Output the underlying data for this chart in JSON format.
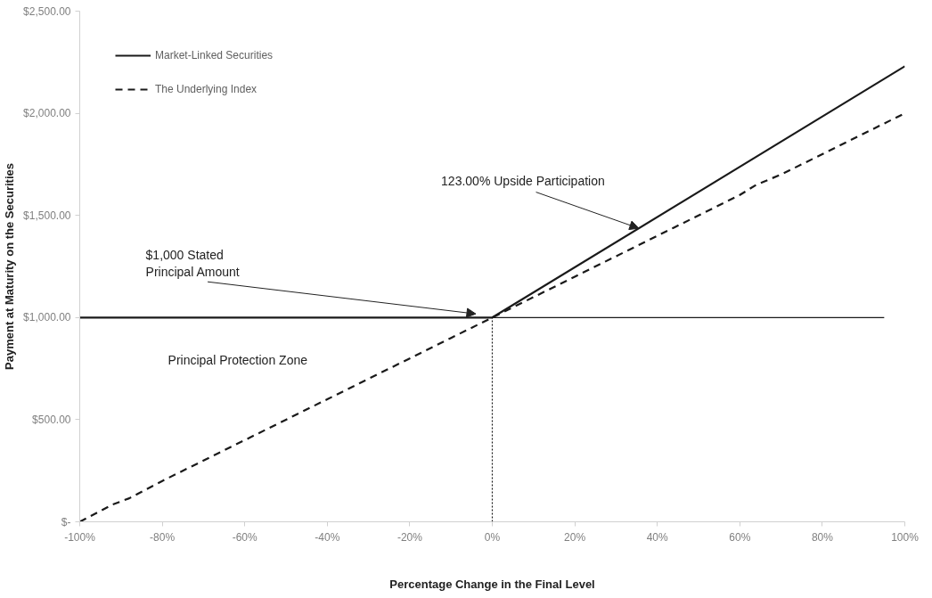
{
  "chart_data": {
    "type": "line",
    "xlabel": "Percentage Change in the Final Level",
    "ylabel": "Payment at Maturity on the Securities",
    "series": [
      {
        "name": "Market-Linked Securities",
        "color": "#1a1a1a",
        "line_style": "solid",
        "x": [
          -100,
          0,
          100
        ],
        "values": [
          1000,
          1000,
          2230
        ]
      },
      {
        "name": "The Underlying Index",
        "color": "#1a1a1a",
        "line_style": "dashed",
        "x": [
          -100,
          -92,
          -88,
          -80,
          -70,
          -60,
          -50,
          -40,
          -30,
          -20,
          -10,
          0,
          10,
          20,
          30,
          44,
          50,
          60,
          64,
          70,
          80,
          90,
          100
        ],
        "values": [
          0,
          85,
          115,
          200,
          300,
          400,
          500,
          600,
          700,
          800,
          900,
          1000,
          1100,
          1200,
          1300,
          1440,
          1500,
          1600,
          1650,
          1700,
          1800,
          1900,
          2000
        ]
      },
      {
        "color": "#1a1a1a",
        "line_style": "solid",
        "x": [
          0,
          95
        ],
        "values": [
          1000,
          1000
        ]
      },
      {
        "color": "#1a1a1a",
        "line_style": "dotted",
        "x": [
          0,
          0
        ],
        "values": [
          0,
          1000
        ]
      }
    ],
    "xlim": [
      -100,
      100
    ],
    "xticks": [
      {
        "value": -100,
        "label": "-100%"
      },
      {
        "value": -80,
        "label": "-80%"
      },
      {
        "value": -60,
        "label": "-60%"
      },
      {
        "value": -40,
        "label": "-40%"
      },
      {
        "value": -20,
        "label": "-20%"
      },
      {
        "value": 0,
        "label": "0%"
      },
      {
        "value": 20,
        "label": "20%"
      },
      {
        "value": 40,
        "label": "40%"
      },
      {
        "value": 60,
        "label": "60%"
      },
      {
        "value": 80,
        "label": "80%"
      },
      {
        "value": 100,
        "label": "100%"
      }
    ],
    "ylim": [
      0,
      2500
    ],
    "yticks": [
      {
        "value": 0,
        "label": "$-"
      },
      {
        "value": 500,
        "label": "$500.00"
      },
      {
        "value": 1000,
        "label": "$1,000.00"
      },
      {
        "value": 1500,
        "label": "$1,500.00"
      },
      {
        "value": 2000,
        "label": "$2,000.00"
      },
      {
        "value": 2500,
        "label": "$2,500.00"
      }
    ],
    "annotations": [
      {
        "text": "123.00% Upside Participation",
        "x": 35.5,
        "y": 1437
      },
      {
        "text": "$1,000 Stated\nPrincipal Amount",
        "x": -4,
        "y": 1018
      },
      "Principal Protection Zone"
    ],
    "grid": false,
    "legend": "top left",
    "marker": "none"
  }
}
